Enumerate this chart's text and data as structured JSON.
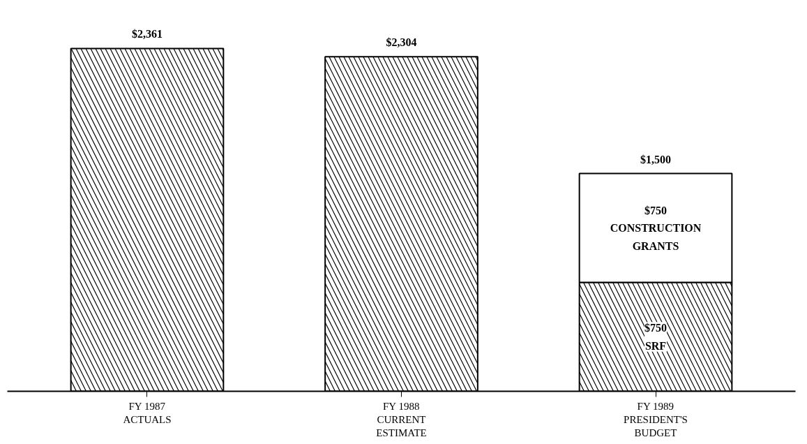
{
  "chart_data": {
    "type": "bar",
    "stacked": true,
    "categories": [
      "FY 1987\nACTUALS",
      "FY 1988\nCURRENT\nESTIMATE",
      "FY 1989\nPRESIDENT'S\nBUDGET"
    ],
    "series": [
      {
        "name": "SRF",
        "color": "#ffffff",
        "values": [
          2361,
          2304,
          750
        ],
        "value_labels": [
          null,
          null,
          "$750"
        ]
      },
      {
        "name": "CONSTRUCTION GRANTS",
        "color": "#ffffff",
        "values": [
          null,
          null,
          750
        ],
        "value_labels": [
          null,
          null,
          "$750"
        ]
      }
    ],
    "totals": [
      "$2,361",
      "$2,304",
      "$1,500"
    ],
    "grid": false,
    "tick_labels": "x"
  }
}
